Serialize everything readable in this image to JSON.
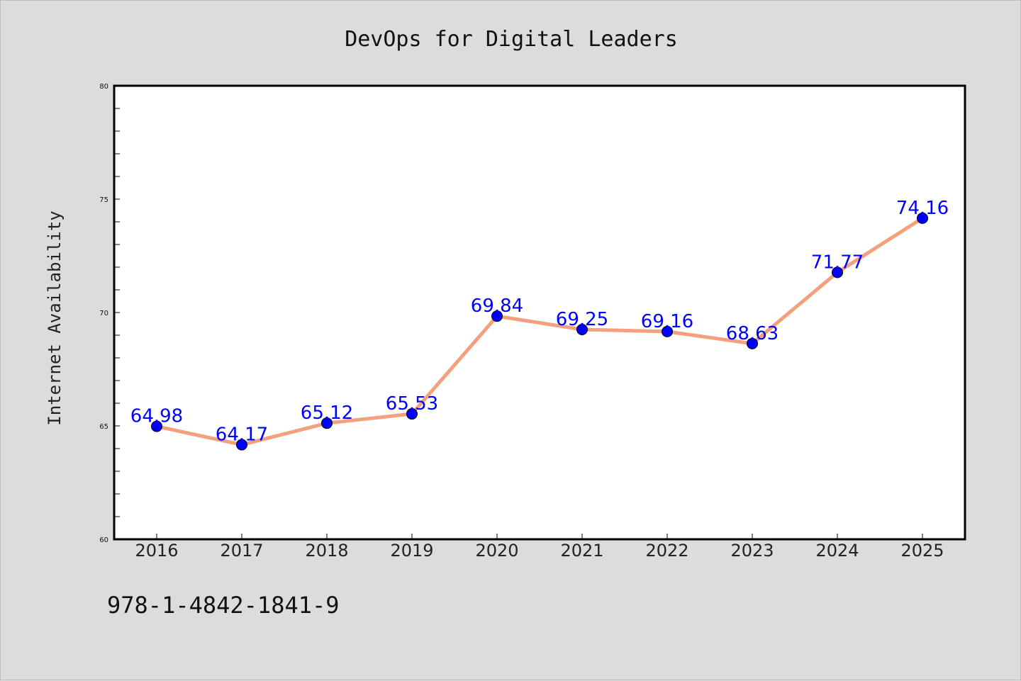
{
  "figure": {
    "background": "#dcdcdc",
    "plot_background": "#ffffff",
    "isbn": "978-1-4842-1841-9"
  },
  "chart_data": {
    "type": "line",
    "title": "DevOps for Digital Leaders",
    "xlabel": "",
    "ylabel": "Internet Availability",
    "x": [
      "2016",
      "2017",
      "2018",
      "2019",
      "2020",
      "2021",
      "2022",
      "2023",
      "2024",
      "2025"
    ],
    "series": [
      {
        "values": [
          64.98,
          64.17,
          65.12,
          65.53,
          69.84,
          69.25,
          69.16,
          68.63,
          71.77,
          74.16
        ],
        "labels": [
          "64.98",
          "64.17",
          "65.12",
          "65.53",
          "69.84",
          "69.25",
          "69.16",
          "68.63",
          "71.77",
          "74.16"
        ],
        "line_color": "#f4a07e",
        "marker_color": "#0000ff",
        "label_color": "#0000ff"
      }
    ],
    "ylim": [
      60,
      80
    ],
    "yticks": [
      60,
      65,
      70,
      75,
      80
    ],
    "ytick_labels": [
      "60",
      "65",
      "70",
      "75",
      "80"
    ],
    "grid": false,
    "legend": "none"
  }
}
